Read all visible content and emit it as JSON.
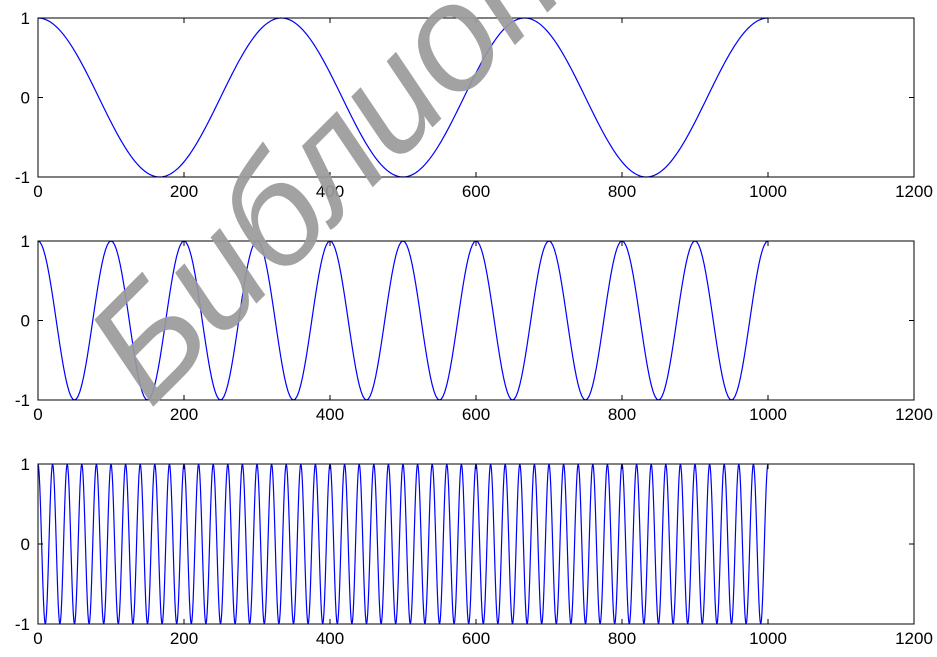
{
  "chart_data": [
    {
      "type": "line",
      "title": "",
      "xlabel": "",
      "ylabel": "",
      "xlim": [
        0,
        1200
      ],
      "ylim": [
        -1,
        1
      ],
      "xticks": [
        0,
        200,
        400,
        600,
        800,
        1000,
        1200
      ],
      "yticks": [
        -1,
        0,
        1
      ],
      "xtick_labels": [
        "0",
        "200",
        "400",
        "600",
        "800",
        "1000",
        "1200"
      ],
      "ytick_labels": [
        "-1",
        "0",
        "1"
      ],
      "grid": false,
      "series": [
        {
          "function": "cos",
          "x_start": 0,
          "x_end": 1000,
          "period": 333.33,
          "amplitude": 1,
          "color": "#0000ff",
          "sample_points": [
            [
              0,
              1
            ],
            [
              166.7,
              -1
            ],
            [
              333.3,
              1
            ],
            [
              500,
              -1
            ],
            [
              666.7,
              1
            ],
            [
              833.3,
              -1
            ],
            [
              1000,
              1
            ]
          ]
        }
      ]
    },
    {
      "type": "line",
      "title": "",
      "xlabel": "",
      "ylabel": "",
      "xlim": [
        0,
        1200
      ],
      "ylim": [
        -1,
        1
      ],
      "xticks": [
        0,
        200,
        400,
        600,
        800,
        1000,
        1200
      ],
      "yticks": [
        -1,
        0,
        1
      ],
      "xtick_labels": [
        "0",
        "200",
        "400",
        "600",
        "800",
        "1000",
        "1200"
      ],
      "ytick_labels": [
        "-1",
        "0",
        "1"
      ],
      "grid": false,
      "series": [
        {
          "function": "cos",
          "x_start": 0,
          "x_end": 1000,
          "period": 100,
          "amplitude": 1,
          "color": "#0000ff",
          "sample_points": [
            [
              0,
              1
            ],
            [
              50,
              -1
            ],
            [
              100,
              1
            ],
            [
              150,
              -1
            ],
            [
              200,
              1
            ],
            [
              250,
              -1
            ],
            [
              300,
              1
            ],
            [
              350,
              -1
            ],
            [
              400,
              1
            ],
            [
              450,
              -1
            ],
            [
              500,
              1
            ],
            [
              550,
              -1
            ],
            [
              600,
              1
            ],
            [
              650,
              -1
            ],
            [
              700,
              1
            ],
            [
              750,
              -1
            ],
            [
              800,
              1
            ],
            [
              850,
              -1
            ],
            [
              900,
              1
            ],
            [
              950,
              -1
            ],
            [
              1000,
              1
            ]
          ]
        }
      ]
    },
    {
      "type": "line",
      "title": "",
      "xlabel": "",
      "ylabel": "",
      "xlim": [
        0,
        1200
      ],
      "ylim": [
        -1,
        1
      ],
      "xticks": [
        0,
        200,
        400,
        600,
        800,
        1000,
        1200
      ],
      "yticks": [
        -1,
        0,
        1
      ],
      "xtick_labels": [
        "0",
        "200",
        "400",
        "600",
        "800",
        "1000",
        "1200"
      ],
      "ytick_labels": [
        "-1",
        "0",
        "1"
      ],
      "grid": false,
      "series": [
        {
          "function": "cos",
          "x_start": 0,
          "x_end": 1000,
          "period": 20,
          "amplitude": 1,
          "color": "#0000ff",
          "sample_points": [
            [
              0,
              1
            ],
            [
              10,
              -1
            ],
            [
              20,
              1
            ],
            [
              30,
              -1
            ],
            [
              40,
              1
            ],
            [
              500,
              1
            ],
            [
              990,
              -1
            ],
            [
              1000,
              1
            ]
          ]
        }
      ]
    }
  ],
  "watermark": {
    "color": "#9a9a9a",
    "text": "Библиот"
  }
}
